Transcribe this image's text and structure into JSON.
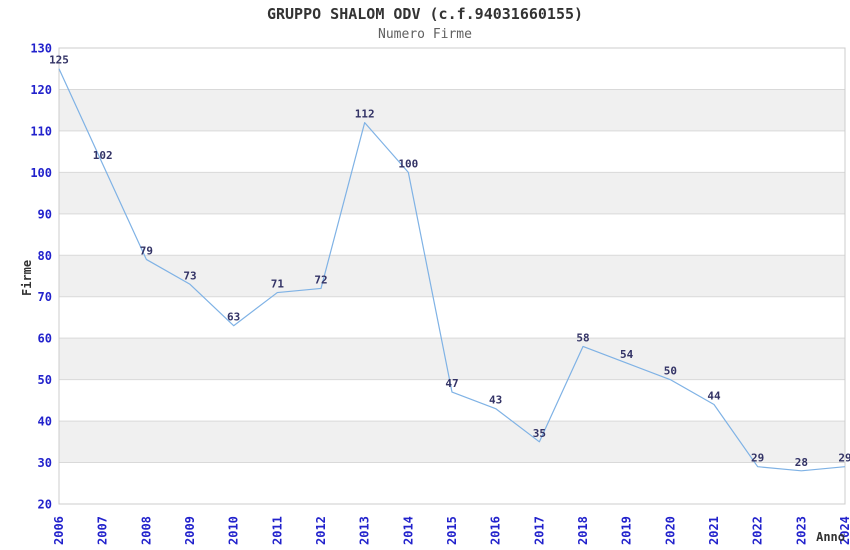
{
  "header": {
    "title": "GRUPPO SHALOM ODV (c.f.94031660155)",
    "subtitle": "Numero Firme"
  },
  "chart_data": {
    "type": "line",
    "title": "GRUPPO SHALOM ODV (c.f.94031660155)",
    "subtitle": "Numero Firme",
    "xlabel": "Anno",
    "ylabel": "Firme",
    "categories": [
      "2006",
      "2007",
      "2008",
      "2009",
      "2010",
      "2011",
      "2012",
      "2013",
      "2014",
      "2015",
      "2016",
      "2017",
      "2018",
      "2019",
      "2020",
      "2021",
      "2022",
      "2023",
      "2024"
    ],
    "series": [
      {
        "name": "Numero Firme",
        "values": [
          125,
          102,
          79,
          73,
          63,
          71,
          72,
          112,
          100,
          47,
          43,
          35,
          58,
          54,
          50,
          44,
          29,
          28,
          29
        ]
      }
    ],
    "ylim": [
      20,
      130
    ],
    "ytick_step": 10,
    "yticks": [
      20,
      30,
      40,
      50,
      60,
      70,
      80,
      90,
      100,
      110,
      120,
      130
    ],
    "grid": "horizontal-only",
    "band_pattern": "alternating gray bands on odd decades (30-40, 50-60, 70-80, 90-100, 110-120)",
    "legend_position": "none",
    "data_labels_shown": true,
    "colors": {
      "line": "#7fb2e5",
      "tick_label": "#2222cc",
      "data_label": "#333366",
      "band": "#f0f0f0",
      "gridline": "#d9d9d9",
      "plot_border": "#cccccc",
      "plot_background": "#ffffff",
      "title": "#333333",
      "subtitle": "#606060",
      "axis_title": "#333333"
    }
  }
}
